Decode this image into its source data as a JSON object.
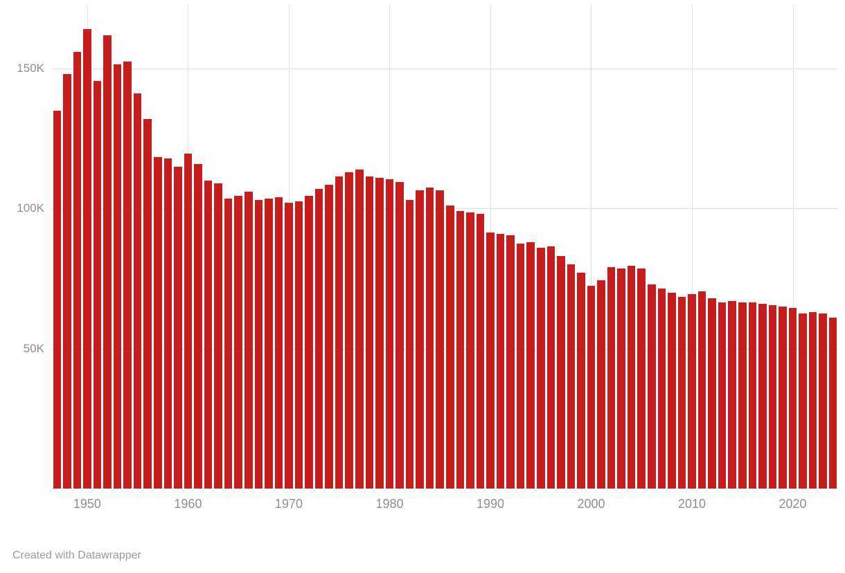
{
  "chart_data": {
    "type": "bar",
    "title": "",
    "xlabel": "",
    "ylabel": "",
    "value_unit": "thousands",
    "ylim": [
      0,
      173
    ],
    "grid": true,
    "bar_color": "#c71e1d",
    "grid_color": "#e2e2e2",
    "axis_text_color": "#8f8f8f",
    "y_ticks": [
      {
        "value": 50,
        "label": "50K"
      },
      {
        "value": 100,
        "label": "100K"
      },
      {
        "value": 150,
        "label": "150K"
      }
    ],
    "x_ticks": [
      1950,
      1960,
      1970,
      1980,
      1990,
      2000,
      2010,
      2020
    ],
    "x": [
      1947,
      1948,
      1949,
      1950,
      1951,
      1952,
      1953,
      1954,
      1955,
      1956,
      1957,
      1958,
      1959,
      1960,
      1961,
      1962,
      1963,
      1964,
      1965,
      1966,
      1967,
      1968,
      1969,
      1970,
      1971,
      1972,
      1973,
      1974,
      1975,
      1976,
      1977,
      1978,
      1979,
      1980,
      1981,
      1982,
      1983,
      1984,
      1985,
      1986,
      1987,
      1988,
      1989,
      1990,
      1991,
      1992,
      1993,
      1994,
      1995,
      1996,
      1997,
      1998,
      1999,
      2000,
      2001,
      2002,
      2003,
      2004,
      2005,
      2006,
      2007,
      2008,
      2009,
      2010,
      2011,
      2012,
      2013,
      2014,
      2015,
      2016,
      2017,
      2018,
      2019,
      2020,
      2021,
      2022,
      2023,
      2024
    ],
    "values": [
      135,
      148,
      156,
      164,
      145.5,
      162,
      151.5,
      152.5,
      141,
      132,
      118.5,
      118,
      115,
      119.5,
      116,
      110,
      109,
      103.5,
      104.5,
      106,
      103,
      103.5,
      104,
      102,
      102.5,
      104.5,
      107,
      108.5,
      111.5,
      113,
      114,
      111.5,
      111,
      110.5,
      109.5,
      103,
      106.5,
      107.5,
      106.5,
      101,
      99,
      98.5,
      98,
      91.5,
      91,
      90.5,
      87.5,
      88,
      86,
      86.5,
      83,
      80,
      77,
      72.5,
      74.5,
      79,
      78.5,
      79.5,
      78.5,
      73,
      71.5,
      70,
      68.5,
      69.5,
      70.5,
      68,
      66.5,
      67,
      66.5,
      66.5,
      66,
      65.5,
      65,
      64.5,
      62.5,
      63,
      62.5,
      61
    ]
  },
  "footer": {
    "attribution": "Created with Datawrapper"
  }
}
